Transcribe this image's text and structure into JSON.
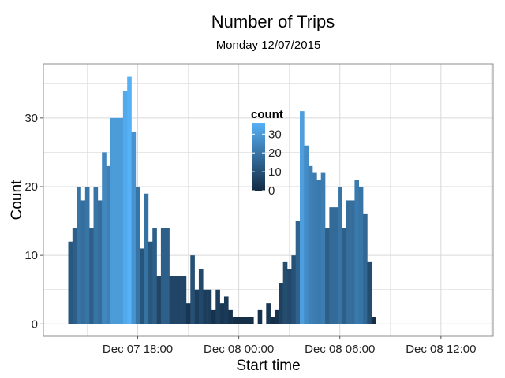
{
  "chart_data": {
    "type": "bar",
    "title": "Number of Trips",
    "subtitle": "Monday 12/07/2015",
    "xlabel": "Start time",
    "ylabel": "Count",
    "x_unit": "hour (Dec 07 00:00 = 0)",
    "x_ticks": [
      {
        "value": 18,
        "label": "Dec 07 18:00"
      },
      {
        "value": 24,
        "label": "Dec 08 00:00"
      },
      {
        "value": 30,
        "label": "Dec 08 06:00"
      },
      {
        "value": 36,
        "label": "Dec 08 12:00"
      }
    ],
    "y_ticks": [
      0,
      10,
      20,
      30
    ],
    "xlim": [
      12.4,
      39.1
    ],
    "ylim": [
      -1.8,
      37.9
    ],
    "bin_start": 13.875,
    "bin_width": 0.25,
    "counts": [
      12,
      14,
      20,
      18,
      20,
      14,
      20,
      18,
      25,
      23,
      30,
      30,
      30,
      34,
      36,
      28,
      20,
      11,
      19,
      12,
      14,
      7,
      14,
      14,
      7,
      7,
      7,
      7,
      3,
      10,
      5,
      8,
      5,
      5,
      2,
      5,
      3,
      4,
      2,
      1,
      1,
      1,
      1,
      1,
      0,
      2,
      0,
      3,
      1,
      2,
      6,
      9,
      8,
      10,
      15,
      31,
      26,
      23,
      22,
      21,
      22,
      14,
      17,
      17,
      20,
      14,
      18,
      18,
      21,
      20,
      16,
      9,
      1
    ],
    "grid": true,
    "legend": {
      "title": "count",
      "position": "inside-top-center",
      "ticks": [
        0,
        10,
        20,
        30
      ],
      "range": [
        0,
        36
      ],
      "low_color": "#132B43",
      "high_color": "#56B1F7"
    },
    "colors": {
      "panel_background": "#ffffff",
      "grid": "#d9d9d9",
      "panel_border": "#8c8c8c"
    }
  }
}
